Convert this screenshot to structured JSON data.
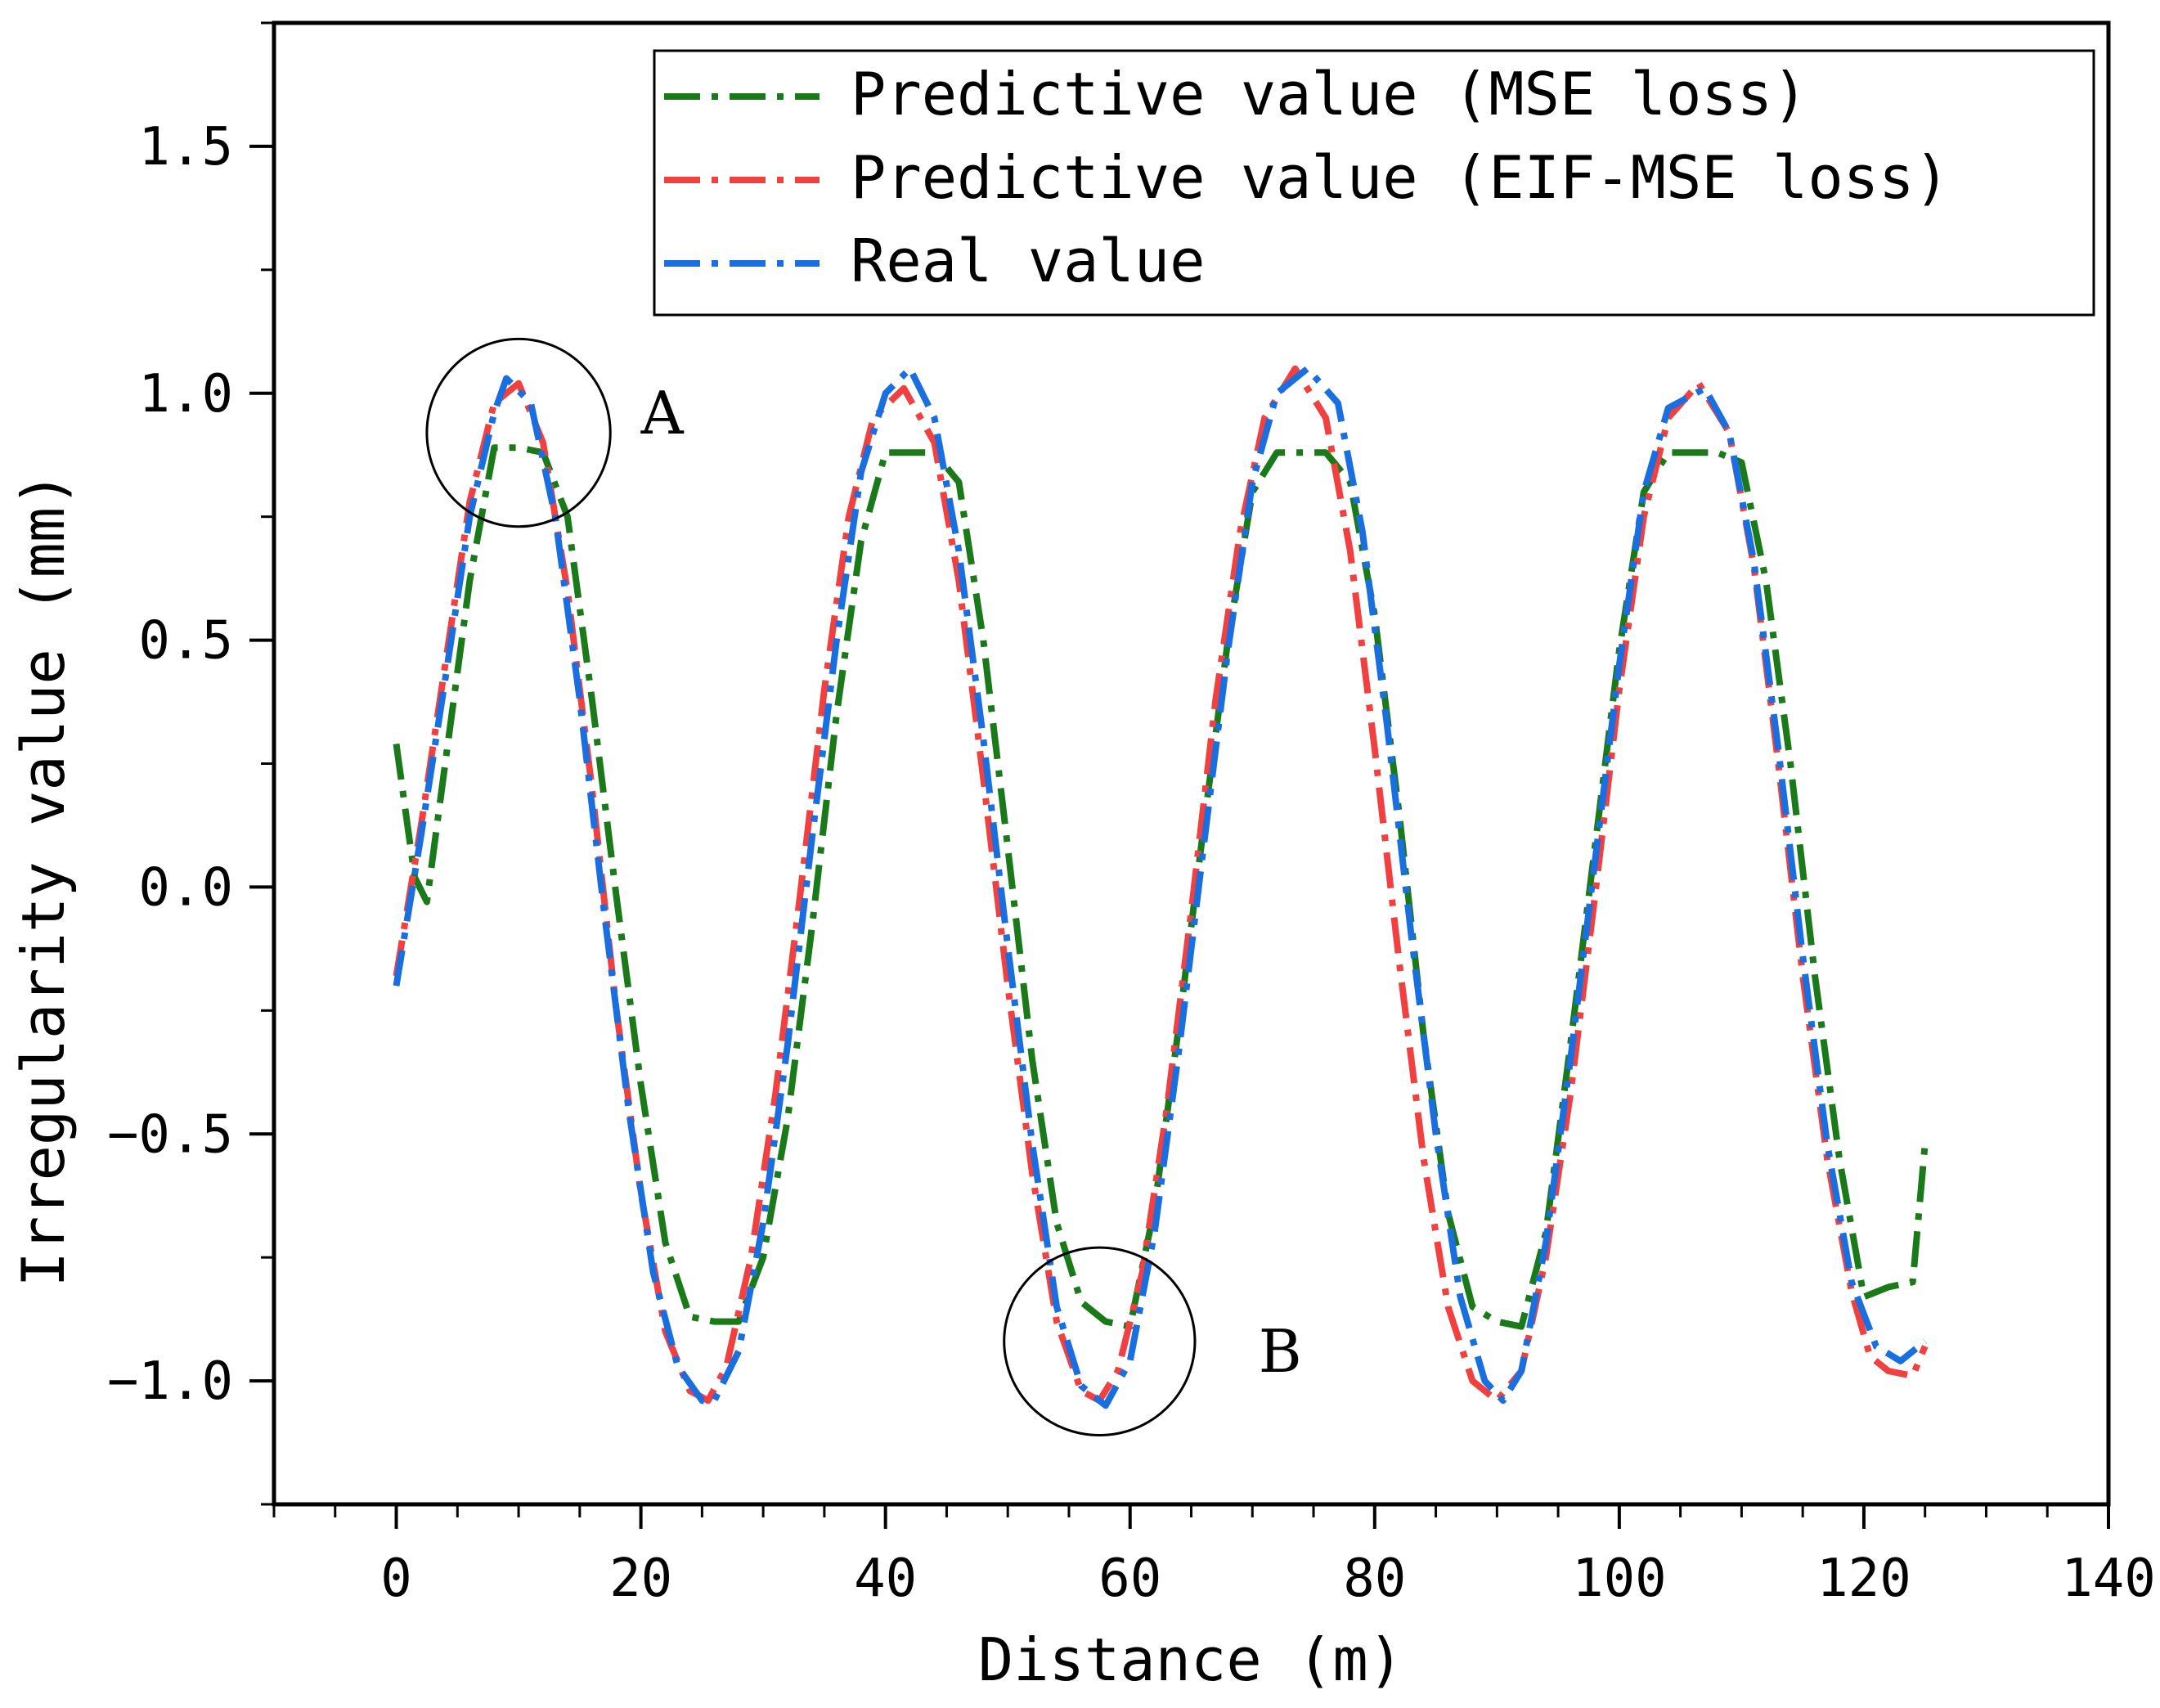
{
  "chart_data": {
    "type": "line",
    "title": "",
    "xlabel": "Distance (m)",
    "ylabel": "Irregularity value (mm)",
    "xlim": [
      -10,
      140
    ],
    "ylim": [
      -1.25,
      1.75
    ],
    "xticks": [
      0,
      20,
      40,
      60,
      80,
      100,
      120,
      140
    ],
    "xtick_labels": [
      "0",
      "20",
      "40",
      "60",
      "80",
      "100",
      "120",
      "140"
    ],
    "yticks": [
      -1.0,
      -0.5,
      0.0,
      0.5,
      1.0,
      1.5
    ],
    "ytick_labels": [
      "−1.0",
      "−0.5",
      "0.0",
      "0.5",
      "1.0",
      "1.5"
    ],
    "legend_position": "top-right",
    "series": [
      {
        "name": "Predictive value (MSE loss)",
        "color": "#1a7a1a",
        "dash": "dashdot",
        "x": [
          0,
          1.5,
          2.5,
          4,
          6,
          8,
          10,
          12,
          14,
          16,
          18,
          20,
          22,
          24,
          26,
          28,
          30,
          32,
          34,
          36,
          38,
          40,
          42,
          44,
          46,
          48,
          50,
          52,
          54,
          56,
          58,
          60,
          62,
          64,
          66,
          68,
          70,
          72,
          74,
          76,
          78,
          80,
          82,
          84,
          86,
          88,
          90,
          92,
          94,
          96,
          98,
          100,
          102,
          104,
          106,
          108,
          110,
          112,
          114,
          116,
          118,
          120,
          122,
          124,
          125
        ],
        "values": [
          0.29,
          0.02,
          -0.03,
          0.25,
          0.62,
          0.89,
          0.89,
          0.88,
          0.75,
          0.38,
          -0.02,
          -0.4,
          -0.72,
          -0.87,
          -0.88,
          -0.88,
          -0.75,
          -0.47,
          -0.08,
          0.35,
          0.7,
          0.88,
          0.88,
          0.88,
          0.82,
          0.5,
          0.08,
          -0.35,
          -0.68,
          -0.84,
          -0.88,
          -0.89,
          -0.65,
          -0.28,
          0.12,
          0.5,
          0.8,
          0.88,
          0.88,
          0.88,
          0.82,
          0.55,
          0.15,
          -0.3,
          -0.66,
          -0.85,
          -0.88,
          -0.89,
          -0.7,
          -0.32,
          0.08,
          0.48,
          0.8,
          0.88,
          0.88,
          0.88,
          0.86,
          0.62,
          0.25,
          -0.18,
          -0.55,
          -0.83,
          -0.81,
          -0.8,
          -0.52
        ]
      },
      {
        "name": "Predictive value (EIF-MSE loss)",
        "color": "#f04040",
        "dash": "dashdot",
        "x": [
          0,
          2,
          4,
          6,
          8,
          10,
          12,
          14,
          16,
          18,
          20,
          22,
          24,
          25.5,
          27,
          29,
          31,
          33,
          35,
          37,
          39,
          41.5,
          44,
          46,
          48,
          50,
          52,
          54,
          56,
          57.5,
          59,
          61,
          63,
          65,
          67,
          69,
          71,
          73.5,
          76,
          78,
          80,
          82,
          84,
          86,
          88,
          90,
          92,
          94,
          96,
          98,
          100,
          102,
          104,
          106.5,
          109,
          111,
          113,
          115,
          117,
          119,
          120.5,
          122,
          124,
          125
        ],
        "values": [
          -0.18,
          0.12,
          0.45,
          0.78,
          0.98,
          1.02,
          0.9,
          0.6,
          0.2,
          -0.25,
          -0.62,
          -0.9,
          -1.02,
          -1.04,
          -0.97,
          -0.75,
          -0.42,
          -0.02,
          0.4,
          0.75,
          0.95,
          1.01,
          0.9,
          0.62,
          0.22,
          -0.2,
          -0.58,
          -0.88,
          -1.02,
          -1.04,
          -0.98,
          -0.78,
          -0.45,
          -0.05,
          0.38,
          0.72,
          0.95,
          1.05,
          0.95,
          0.68,
          0.28,
          -0.15,
          -0.55,
          -0.85,
          -1.0,
          -1.04,
          -0.98,
          -0.75,
          -0.42,
          -0.02,
          0.4,
          0.75,
          0.95,
          1.02,
          0.92,
          0.65,
          0.25,
          -0.18,
          -0.55,
          -0.82,
          -0.95,
          -0.98,
          -0.99,
          -0.93
        ]
      },
      {
        "name": "Real value",
        "color": "#1a6fe0",
        "dash": "dashdot",
        "x": [
          0,
          2,
          4,
          6,
          8,
          9,
          11,
          13,
          15,
          17,
          19,
          21,
          23,
          25,
          26,
          28,
          30,
          32,
          34,
          36,
          38,
          40,
          42,
          44,
          46,
          48,
          50,
          52,
          54,
          56,
          58,
          60,
          62,
          64,
          66,
          68,
          70,
          72,
          74.5,
          77,
          79,
          81,
          83,
          85,
          87,
          89,
          90.5,
          92,
          94,
          96,
          98,
          100,
          102,
          104,
          107,
          109,
          111,
          113,
          115,
          117,
          119,
          121,
          123,
          125
        ],
        "values": [
          -0.2,
          0.1,
          0.42,
          0.75,
          0.96,
          1.03,
          0.98,
          0.75,
          0.38,
          -0.05,
          -0.45,
          -0.78,
          -0.97,
          -1.04,
          -1.04,
          -0.94,
          -0.68,
          -0.32,
          0.1,
          0.5,
          0.84,
          1.0,
          1.05,
          0.95,
          0.68,
          0.3,
          -0.12,
          -0.52,
          -0.85,
          -1.01,
          -1.05,
          -0.96,
          -0.7,
          -0.33,
          0.08,
          0.48,
          0.82,
          1.0,
          1.05,
          0.98,
          0.72,
          0.33,
          -0.1,
          -0.5,
          -0.83,
          -1.0,
          -1.04,
          -0.98,
          -0.72,
          -0.35,
          0.05,
          0.45,
          0.8,
          0.97,
          1.01,
          0.92,
          0.66,
          0.28,
          -0.14,
          -0.52,
          -0.8,
          -0.93,
          -0.96,
          -0.92
        ]
      }
    ],
    "annotations": [
      {
        "label": "A",
        "cx": 10,
        "cy": 0.92,
        "rx": 7.5,
        "ry": 0.19,
        "label_x": 20,
        "label_y": 0.96
      },
      {
        "label": "B",
        "cx": 57.5,
        "cy": -0.92,
        "rx": 7.8,
        "ry": 0.19,
        "label_x": 70.5,
        "label_y": -0.94
      }
    ]
  }
}
